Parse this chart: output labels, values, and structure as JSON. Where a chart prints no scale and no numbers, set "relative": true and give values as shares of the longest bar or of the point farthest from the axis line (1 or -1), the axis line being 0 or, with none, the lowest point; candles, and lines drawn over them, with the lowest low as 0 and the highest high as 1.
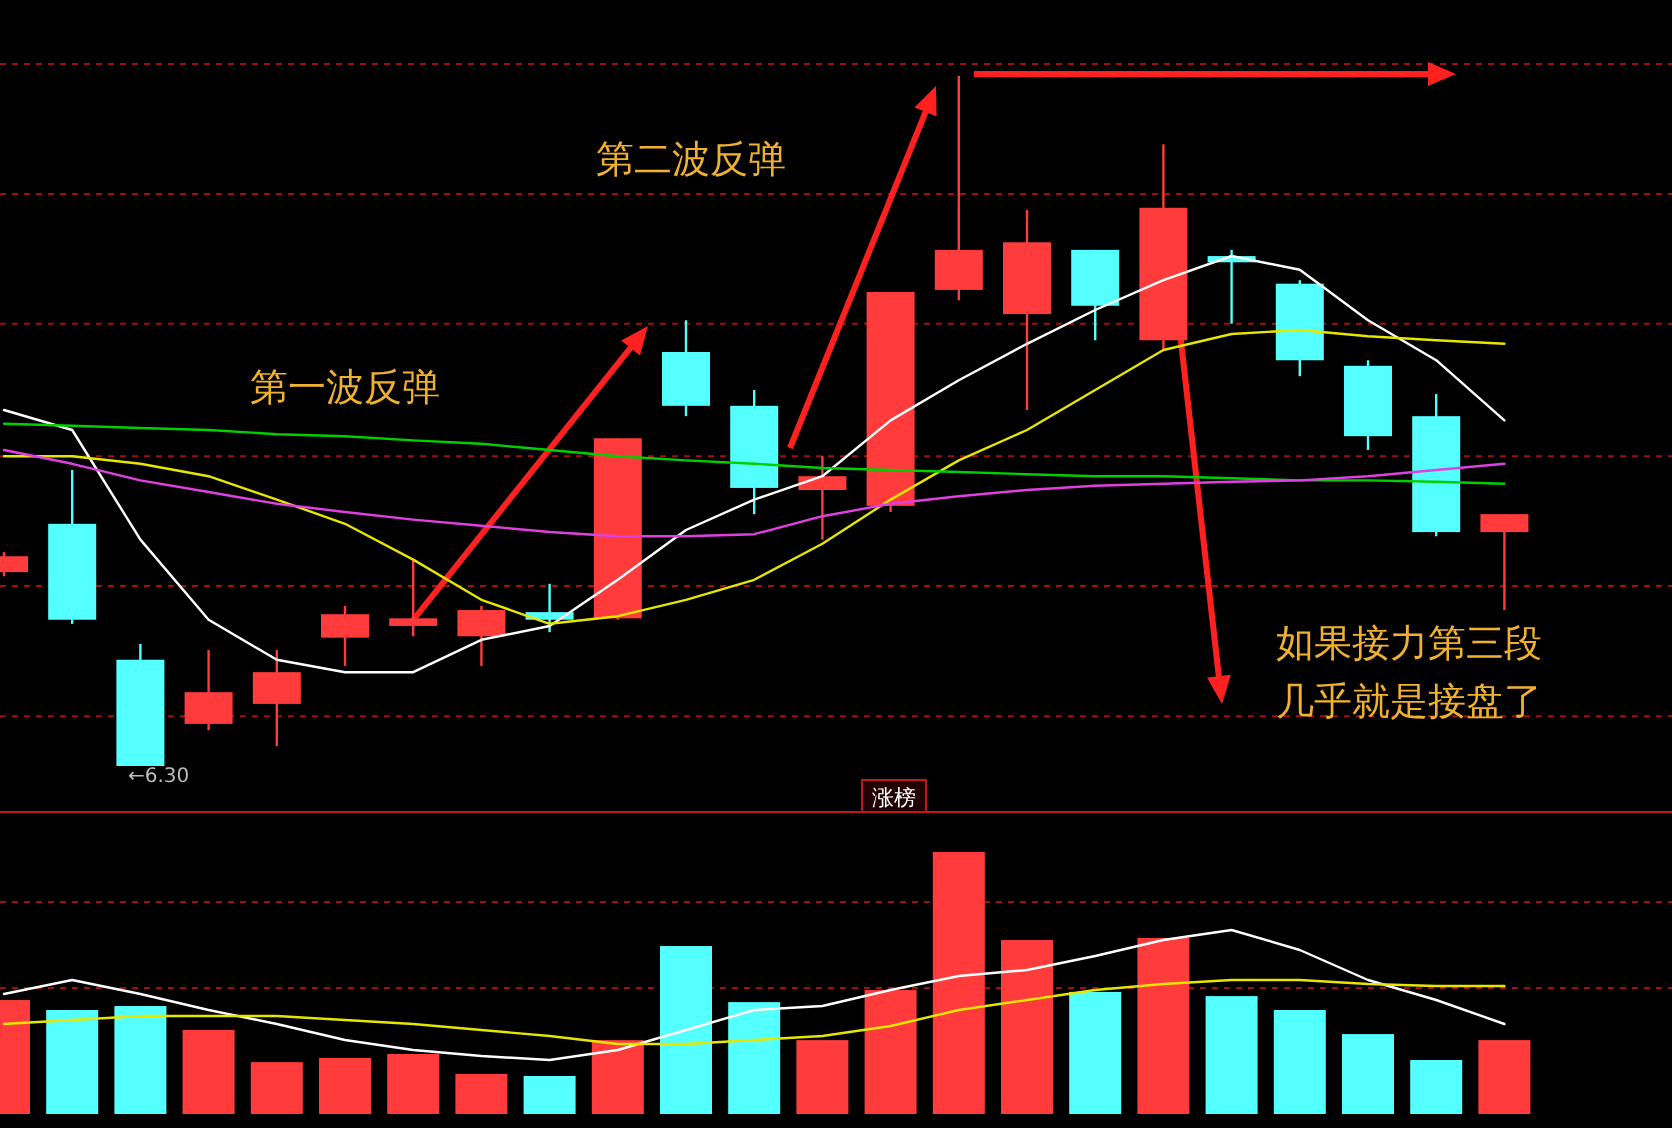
{
  "chart_data": [
    {
      "type": "candlestick",
      "relative": true,
      "ref_lines": [
        {
          "axis": "y",
          "value": 0.829,
          "color": "#a01010",
          "line_style": "dashed"
        },
        {
          "axis": "y",
          "value": 0.641,
          "color": "#a01010",
          "line_style": "dashed"
        },
        {
          "axis": "y",
          "value": 0.449,
          "color": "#a01010",
          "line_style": "dashed"
        },
        {
          "axis": "y",
          "value": 0.261,
          "color": "#a01010",
          "line_style": "dashed"
        },
        {
          "axis": "y",
          "value": 0.072,
          "color": "#a01010",
          "line_style": "dashed"
        }
      ],
      "categories": [
        null,
        null,
        null,
        null,
        null,
        null,
        null,
        null,
        null,
        null,
        null,
        null,
        null,
        null,
        null,
        null,
        null,
        null,
        null,
        null,
        null,
        null,
        null
      ],
      "ohlc": [
        [
          0.281,
          0.31,
          0.275,
          0.304
        ],
        [
          0.351,
          0.429,
          0.206,
          0.212
        ],
        [
          0.154,
          0.177,
          0,
          0
        ],
        [
          0.061,
          0.168,
          0.052,
          0.107
        ],
        [
          0.09,
          0.168,
          0.029,
          0.136
        ],
        [
          0.186,
          0.232,
          0.145,
          0.22
        ],
        [
          0.203,
          0.299,
          0.188,
          0.214
        ],
        [
          0.188,
          0.232,
          0.145,
          0.226
        ],
        [
          0.223,
          0.264,
          0.194,
          0.212
        ],
        [
          0.214,
          0.475,
          0.212,
          0.475
        ],
        [
          0.6,
          0.646,
          0.507,
          0.522
        ],
        [
          0.522,
          0.545,
          0.365,
          0.403
        ],
        [
          0.4,
          0.449,
          0.328,
          0.42
        ],
        [
          0.377,
          0.687,
          0.368,
          0.687
        ],
        [
          0.69,
          1,
          0.675,
          0.748
        ],
        [
          0.655,
          0.806,
          0.516,
          0.759
        ],
        [
          0.748,
          0.748,
          0.617,
          0.667
        ],
        [
          0.617,
          0.901,
          0.603,
          0.809
        ],
        [
          0.739,
          0.748,
          0.641,
          0.73
        ],
        [
          0.699,
          0.704,
          0.565,
          0.588
        ],
        [
          0.58,
          0.588,
          0.458,
          0.478
        ],
        [
          0.507,
          0.539,
          0.333,
          0.339
        ],
        [
          0.339,
          0.365,
          0.226,
          0.365
        ]
      ],
      "colors": [
        "#ff3b3b",
        "#54ffff",
        "#54ffff",
        "#ff3b3b",
        "#ff3b3b",
        "#ff3b3b",
        "#ff3b3b",
        "#ff3b3b",
        "#54ffff",
        "#ff3b3b",
        "#54ffff",
        "#54ffff",
        "#ff3b3b",
        "#ff3b3b",
        "#ff3b3b",
        "#ff3b3b",
        "#54ffff",
        "#ff3b3b",
        "#54ffff",
        "#54ffff",
        "#54ffff",
        "#54ffff",
        "#ff3b3b"
      ],
      "series": [
        {
          "type": "line",
          "color": "#ffffff",
          "values": [
            0.516,
            0.487,
            0.328,
            0.212,
            0.154,
            0.136,
            0.136,
            0.183,
            0.203,
            0.27,
            0.342,
            0.386,
            0.42,
            0.501,
            0.559,
            0.612,
            0.661,
            0.704,
            0.739,
            0.719,
            0.646,
            0.588,
            0.501
          ]
        },
        {
          "type": "line",
          "color": "#e6e600",
          "values": [
            0.449,
            0.449,
            0.438,
            0.42,
            0.386,
            0.351,
            0.299,
            0.241,
            0.206,
            0.217,
            0.241,
            0.27,
            0.322,
            0.386,
            0.443,
            0.487,
            0.545,
            0.603,
            0.626,
            0.632,
            0.623,
            0.617,
            0.612
          ]
        },
        {
          "type": "line",
          "color": "#00d000",
          "values": [
            0.496,
            0.493,
            0.49,
            0.487,
            0.481,
            0.478,
            0.472,
            0.467,
            0.458,
            0.449,
            0.443,
            0.438,
            0.432,
            0.429,
            0.426,
            0.423,
            0.42,
            0.42,
            0.417,
            0.414,
            0.414,
            0.412,
            0.409
          ]
        },
        {
          "type": "line",
          "color": "#e040e0",
          "values": [
            0.458,
            0.438,
            0.414,
            0.397,
            0.38,
            0.368,
            0.357,
            0.348,
            0.339,
            0.333,
            0.333,
            0.336,
            0.362,
            0.38,
            0.391,
            0.4,
            0.406,
            0.409,
            0.412,
            0.414,
            0.42,
            0.429,
            0.438
          ]
        }
      ],
      "annotations": [
        "第一波反弹",
        "第二波反弹",
        "如果接力第三段",
        "几乎就是接盘了",
        "←6.30"
      ]
    },
    {
      "type": "bar",
      "relative": true,
      "title": "涨榜",
      "ref_lines": [
        {
          "axis": "y",
          "value": 0.809,
          "color": "#a01010",
          "line_style": "dashed"
        },
        {
          "axis": "y",
          "value": 0.481,
          "color": "#a01010",
          "line_style": "dashed"
        }
      ],
      "categories": [
        null,
        null,
        null,
        null,
        null,
        null,
        null,
        null,
        null,
        null,
        null,
        null,
        null,
        null,
        null,
        null,
        null,
        null,
        null,
        null,
        null,
        null,
        null
      ],
      "values": [
        0.435,
        0.397,
        0.412,
        0.321,
        0.198,
        0.214,
        0.229,
        0.153,
        0.145,
        0.282,
        0.641,
        0.427,
        0.282,
        0.473,
        1,
        0.664,
        0.466,
        0.672,
        0.45,
        0.397,
        0.305,
        0.206,
        0.282
      ],
      "colors": [
        "#ff3b3b",
        "#54ffff",
        "#54ffff",
        "#ff3b3b",
        "#ff3b3b",
        "#ff3b3b",
        "#ff3b3b",
        "#ff3b3b",
        "#54ffff",
        "#ff3b3b",
        "#54ffff",
        "#54ffff",
        "#ff3b3b",
        "#ff3b3b",
        "#ff3b3b",
        "#ff3b3b",
        "#54ffff",
        "#ff3b3b",
        "#54ffff",
        "#54ffff",
        "#54ffff",
        "#54ffff",
        "#ff3b3b"
      ]
    },
    {
      "type": "line",
      "relative": true,
      "categories": [
        null,
        null,
        null,
        null,
        null,
        null,
        null,
        null,
        null,
        null,
        null,
        null,
        null,
        null,
        null,
        null,
        null,
        null,
        null,
        null,
        null,
        null,
        null
      ],
      "series": [
        {
          "color": "#ffffff",
          "values": [
            0.508,
            0.615,
            0.508,
            0.385,
            0.277,
            0.154,
            0.077,
            0.031,
            0,
            0.077,
            0.231,
            0.385,
            0.415,
            0.538,
            0.646,
            0.692,
            0.8,
            0.923,
            1,
            0.846,
            0.615,
            0.462,
            0.277
          ]
        },
        {
          "color": "#e6e600",
          "values": [
            0.277,
            0.308,
            0.338,
            0.338,
            0.338,
            0.308,
            0.277,
            0.231,
            0.185,
            0.123,
            0.123,
            0.154,
            0.185,
            0.262,
            0.385,
            0.462,
            0.538,
            0.585,
            0.615,
            0.615,
            0.585,
            0.569,
            0.569
          ]
        }
      ]
    }
  ]
}
